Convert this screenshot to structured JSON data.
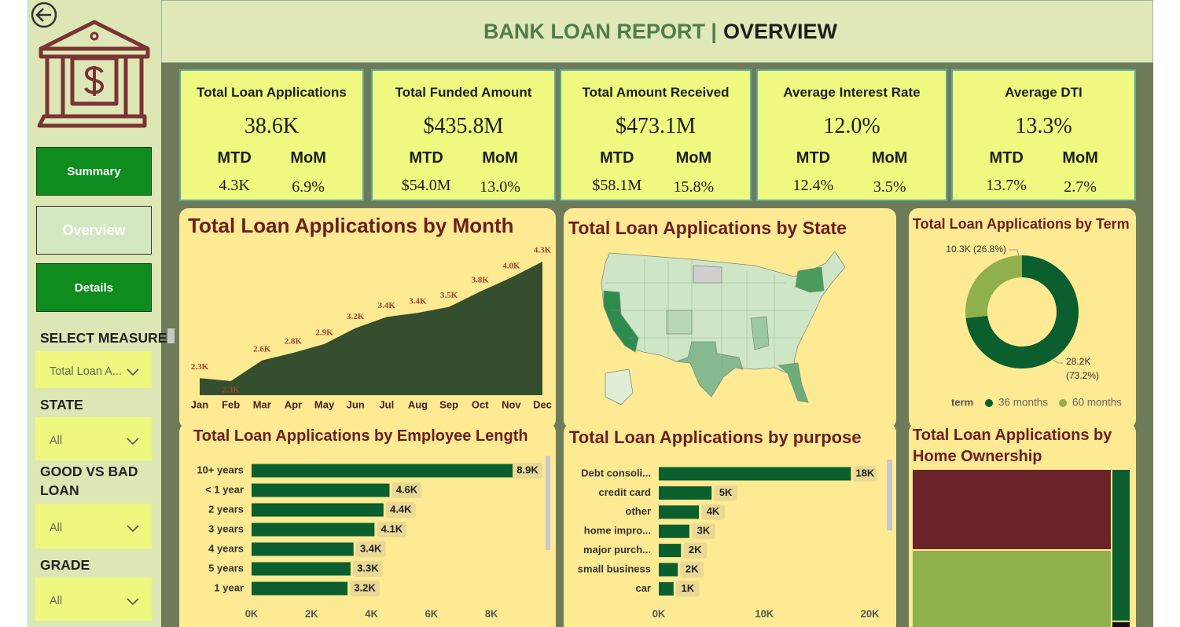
{
  "header": {
    "title": "BANK LOAN REPORT |",
    "page": "OVERVIEW"
  },
  "sidebar": {
    "buttons": [
      "Summary",
      "Overview",
      "Details"
    ],
    "filters": [
      {
        "label": "SELECT MEASURE",
        "value": "Total Loan A..."
      },
      {
        "label": "STATE",
        "value": "All"
      },
      {
        "label": "GOOD VS BAD LOAN",
        "value": "All"
      },
      {
        "label": "GRADE",
        "value": "All"
      }
    ]
  },
  "kpis": [
    {
      "title": "Total Loan Applications",
      "value": "38.6K",
      "mtd_label": "MTD",
      "mom_label": "MoM",
      "mtd": "4.3K",
      "mom": "6.9%"
    },
    {
      "title": "Total Funded Amount",
      "value": "$435.8M",
      "mtd_label": "MTD",
      "mom_label": "MoM",
      "mtd": "$54.0M",
      "mom": "13.0%"
    },
    {
      "title": "Total Amount Received",
      "value": "$473.1M",
      "mtd_label": "MTD",
      "mom_label": "MoM",
      "mtd": "$58.1M",
      "mom": "15.8%"
    },
    {
      "title": "Average Interest Rate",
      "value": "12.0%",
      "mtd_label": "MTD",
      "mom_label": "MoM",
      "mtd": "12.4%",
      "mom": "3.5%"
    },
    {
      "title": "Average DTI",
      "value": "13.3%",
      "mtd_label": "MTD",
      "mom_label": "MoM",
      "mtd": "13.7%",
      "mom": "2.7%"
    }
  ],
  "chart_data": [
    {
      "type": "area",
      "title": "Total Loan Applications by Month",
      "categories": [
        "Jan",
        "Feb",
        "Mar",
        "Apr",
        "May",
        "Jun",
        "Jul",
        "Aug",
        "Sep",
        "Oct",
        "Nov",
        "Dec"
      ],
      "values": [
        2330,
        2280,
        2630,
        2760,
        2910,
        3180,
        3370,
        3440,
        3540,
        3800,
        4040,
        4310
      ],
      "value_labels": [
        "2.3K",
        "2.3K",
        "2.6K",
        "2.8K",
        "2.9K",
        "3.2K",
        "3.4K",
        "3.4K",
        "3.5K",
        "3.8K",
        "4.0K",
        "4.3K"
      ],
      "color": "#354f2e"
    },
    {
      "type": "map",
      "title": "Total Loan Applications by State"
    },
    {
      "type": "donut",
      "title": "Total Loan Applications by Term",
      "legend_title": "term",
      "categories": [
        "36 months",
        "60 months"
      ],
      "values": [
        28200,
        10300
      ],
      "value_labels": [
        "28.2K (73.2%)",
        "10.3K (26.8%)"
      ],
      "colors": [
        "#0b5e2e",
        "#8fb04d"
      ]
    },
    {
      "type": "hbar",
      "title": "Total Loan Applications by Employee Length",
      "categories": [
        "10+ years",
        "< 1 year",
        "2 years",
        "3 years",
        "4 years",
        "5 years",
        "1 year"
      ],
      "values": [
        8900,
        4600,
        4400,
        4100,
        3400,
        3300,
        3200
      ],
      "value_labels": [
        "8.9K",
        "4.6K",
        "4.4K",
        "4.1K",
        "3.4K",
        "3.3K",
        "3.2K"
      ],
      "color": "#0b5e2e",
      "xlim": [
        0,
        9700
      ],
      "xticks": [
        {
          "value": 0,
          "label": "0K"
        },
        {
          "value": 2000,
          "label": "2K"
        },
        {
          "value": 4000,
          "label": "4K"
        },
        {
          "value": 6000,
          "label": "6K"
        },
        {
          "value": 8000,
          "label": "8K"
        }
      ]
    },
    {
      "type": "hbar",
      "title": "Total Loan Applications by purpose",
      "categories": [
        "Debt consoli...",
        "credit card",
        "other",
        "home impro...",
        "major purch...",
        "small business",
        "car"
      ],
      "values": [
        18200,
        5000,
        3800,
        2900,
        2100,
        1800,
        1400
      ],
      "value_labels": [
        "18K",
        "5K",
        "4K",
        "3K",
        "2K",
        "2K",
        "1K"
      ],
      "color": "#0b5e2e",
      "xlim": [
        0,
        21000
      ],
      "xticks": [
        {
          "value": 0,
          "label": "0K"
        },
        {
          "value": 10000,
          "label": "10K"
        },
        {
          "value": 20000,
          "label": "20K"
        }
      ]
    },
    {
      "type": "treemap",
      "title": "Total Loan Applications by Home Ownership",
      "categories": [
        null,
        null,
        null,
        null
      ],
      "values": [
        19000,
        17900,
        3100,
        100
      ],
      "colors": [
        "#6b2228",
        "#8fb04d",
        "#0b5e2e",
        "#111111"
      ]
    }
  ]
}
